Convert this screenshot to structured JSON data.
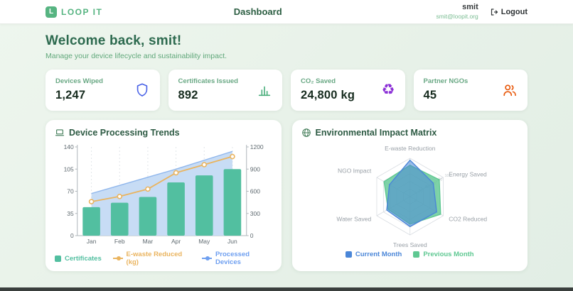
{
  "nav": {
    "brand": "LOOP IT",
    "brand_initial": "L",
    "title": "Dashboard",
    "user_name": "smit",
    "user_email": "smit@loopit.org",
    "logout_label": "Logout"
  },
  "welcome": {
    "heading": "Welcome back, smit!",
    "subheading": "Manage your device lifecycle and sustainability impact."
  },
  "stats": [
    {
      "label": "Devices Wiped",
      "value": "1,247",
      "icon": "shield-icon",
      "icon_color": "#4a63e7"
    },
    {
      "label": "Certificates Issued",
      "value": "892",
      "icon": "bar-chart-icon",
      "icon_color": "#4caf7d"
    },
    {
      "label": "CO₂ Saved",
      "value": "24,800 kg",
      "icon": "recycle-icon",
      "icon_color": "#8b2fd6"
    },
    {
      "label": "Partner NGOs",
      "value": "45",
      "icon": "users-icon",
      "icon_color": "#e8590c"
    }
  ],
  "panels": {
    "trends": {
      "title": "Device Processing Trends",
      "icon": "laptop-icon"
    },
    "impact": {
      "title": "Environmental Impact Matrix",
      "icon": "globe-icon"
    }
  },
  "chart_data": [
    {
      "type": "bar",
      "title": "Device Processing Trends",
      "categories": [
        "Jan",
        "Feb",
        "Mar",
        "Apr",
        "May",
        "Jun"
      ],
      "series": [
        {
          "name": "Certificates",
          "kind": "bar",
          "axis": "left",
          "color": "#52bfa0",
          "values": [
            45,
            52,
            61,
            84,
            95,
            105
          ]
        },
        {
          "name": "E-waste Reduced (kg)",
          "kind": "line",
          "axis": "right",
          "color": "#eab45f",
          "values": [
            460,
            530,
            630,
            850,
            960,
            1070
          ]
        },
        {
          "name": "Processed Devices",
          "kind": "area",
          "axis": "right",
          "color": "#6e9ff0",
          "fill": "#c4daf4",
          "values": [
            570,
            680,
            790,
            900,
            1020,
            1140
          ]
        }
      ],
      "left_axis": {
        "ticks": [
          0,
          35,
          70,
          105,
          140
        ],
        "max": 140
      },
      "right_axis": {
        "ticks": [
          0,
          300,
          600,
          900,
          1200
        ],
        "max": 1200
      },
      "grid": "vertical-dashed",
      "legend_position": "bottom"
    },
    {
      "type": "radar",
      "title": "Environmental Impact Matrix",
      "categories": [
        "E-waste Reduction",
        "Energy Saved",
        "CO2 Reduced",
        "Trees Saved",
        "Water Saved",
        "NGO Impact"
      ],
      "series": [
        {
          "name": "Current Month",
          "color": "#4a86d8",
          "fill_opacity": 0.55,
          "values": [
            95,
            70,
            80,
            78,
            70,
            62
          ]
        },
        {
          "name": "Previous Month",
          "color": "#5fc892",
          "fill_opacity": 0.8,
          "values": [
            82,
            88,
            92,
            72,
            66,
            78
          ]
        }
      ],
      "max": 100,
      "ticks": [
        20,
        40,
        60,
        80,
        100
      ],
      "legend_position": "bottom"
    }
  ]
}
